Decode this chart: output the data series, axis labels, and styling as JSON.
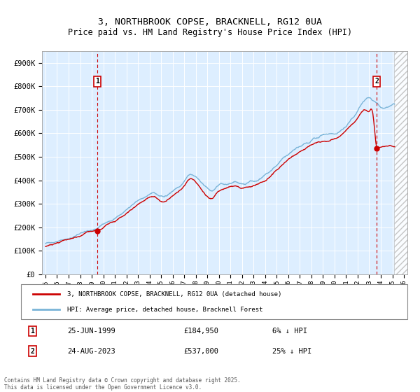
{
  "title": "3, NORTHBROOK COPSE, BRACKNELL, RG12 0UA",
  "subtitle": "Price paid vs. HM Land Registry's House Price Index (HPI)",
  "ylim": [
    0,
    950000
  ],
  "xlim_start": 1994.7,
  "xlim_end": 2026.3,
  "yticks": [
    0,
    100000,
    200000,
    300000,
    400000,
    500000,
    600000,
    700000,
    800000,
    900000
  ],
  "ytick_labels": [
    "£0",
    "£100K",
    "£200K",
    "£300K",
    "£400K",
    "£500K",
    "£600K",
    "£700K",
    "£800K",
    "£900K"
  ],
  "xticks": [
    1995,
    1996,
    1997,
    1998,
    1999,
    2000,
    2001,
    2002,
    2003,
    2004,
    2005,
    2006,
    2007,
    2008,
    2009,
    2010,
    2011,
    2012,
    2013,
    2014,
    2015,
    2016,
    2017,
    2018,
    2019,
    2020,
    2021,
    2022,
    2023,
    2024,
    2025,
    2026
  ],
  "hpi_color": "#7ab4d8",
  "price_color": "#cc0000",
  "background_color": "#ddeeff",
  "marker1_x": 1999.48,
  "marker1_label": "1",
  "marker1_date": "25-JUN-1999",
  "marker1_price": "£184,950",
  "marker1_note": "6% ↓ HPI",
  "marker2_x": 2023.64,
  "marker2_label": "2",
  "marker2_date": "24-AUG-2023",
  "marker2_price": "£537,000",
  "marker2_note": "25% ↓ HPI",
  "legend_line1": "3, NORTHBROOK COPSE, BRACKNELL, RG12 0UA (detached house)",
  "legend_line2": "HPI: Average price, detached house, Bracknell Forest",
  "footer1": "Contains HM Land Registry data © Crown copyright and database right 2025.",
  "footer2": "This data is licensed under the Open Government Licence v3.0.",
  "hatch_start": 2025.17
}
